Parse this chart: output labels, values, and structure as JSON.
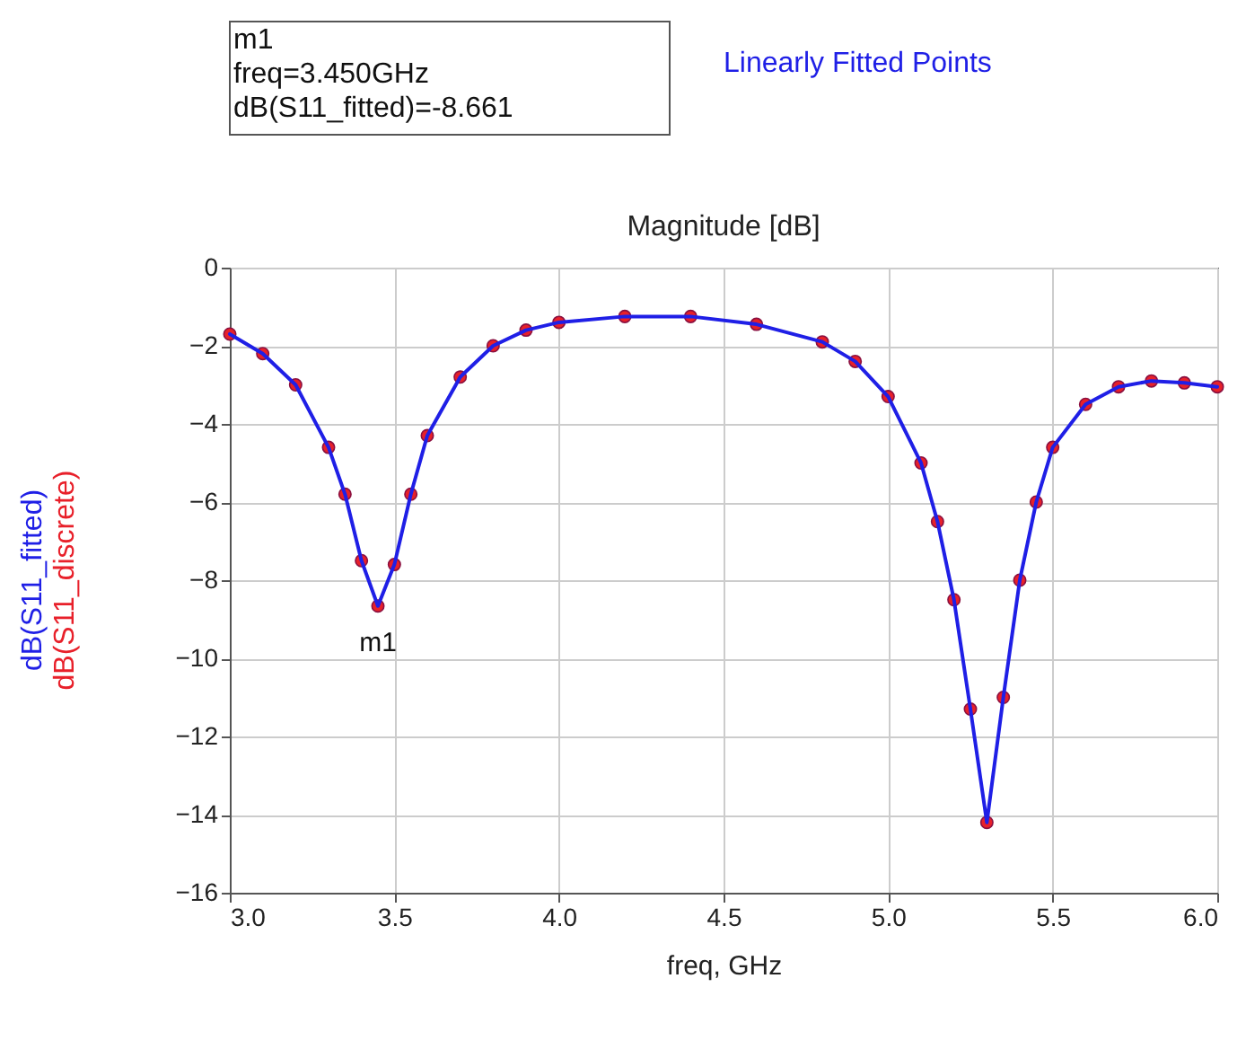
{
  "chart_data": {
    "type": "line",
    "title": "Magnitude [dB]",
    "xlabel": "freq, GHz",
    "x": [
      3.0,
      3.1,
      3.2,
      3.3,
      3.35,
      3.4,
      3.45,
      3.5,
      3.55,
      3.6,
      3.7,
      3.8,
      3.9,
      4.0,
      4.2,
      4.4,
      4.6,
      4.8,
      4.9,
      5.0,
      5.1,
      5.15,
      5.2,
      5.25,
      5.3,
      5.35,
      5.4,
      5.45,
      5.5,
      5.6,
      5.7,
      5.8,
      5.9,
      6.0
    ],
    "series": [
      {
        "name": "dB(S11_discrete)",
        "type": "scatter",
        "marker": "circle",
        "color": "#e8202a",
        "values": [
          -1.7,
          -2.2,
          -3.0,
          -4.6,
          -5.8,
          -7.5,
          -8.66,
          -7.6,
          -5.8,
          -4.3,
          -2.8,
          -2.0,
          -1.6,
          -1.4,
          -1.25,
          -1.25,
          -1.45,
          -1.9,
          -2.4,
          -3.3,
          -5.0,
          -6.5,
          -8.5,
          -11.3,
          -14.2,
          -11.0,
          -8.0,
          -6.0,
          -4.6,
          -3.5,
          -3.05,
          -2.9,
          -2.95,
          -3.05
        ]
      },
      {
        "name": "dB(S11_fitted)",
        "color": "#1f1fe6",
        "values": [
          -1.7,
          -2.2,
          -3.0,
          -4.6,
          -5.8,
          -7.5,
          -8.66,
          -7.6,
          -5.8,
          -4.3,
          -2.8,
          -2.0,
          -1.6,
          -1.4,
          -1.25,
          -1.25,
          -1.45,
          -1.9,
          -2.4,
          -3.3,
          -5.0,
          -6.5,
          -8.5,
          -11.3,
          -14.2,
          -11.0,
          -8.0,
          -6.0,
          -4.6,
          -3.5,
          -3.05,
          -2.9,
          -2.95,
          -3.05
        ]
      }
    ],
    "xlim": [
      3.0,
      6.0
    ],
    "xticks": [
      {
        "value": 3,
        "label": "3.0"
      },
      3.5,
      {
        "value": 4,
        "label": "4.0"
      },
      4.5,
      {
        "value": 5,
        "label": "5.0"
      },
      5.5,
      {
        "value": 6,
        "label": "6.0"
      }
    ],
    "ylim": [
      -16,
      0
    ],
    "yticks": [
      0,
      -2,
      -4,
      -6,
      -8,
      -10,
      -12,
      -14,
      -16
    ],
    "grid": true,
    "annotations": [
      {
        "text": "m1",
        "x": 3.45,
        "y": -8.661
      },
      "m1\nfreq=3.450GHz\ndB(S11_fitted)=-8.661",
      "Linearly Fitted Points"
    ]
  }
}
